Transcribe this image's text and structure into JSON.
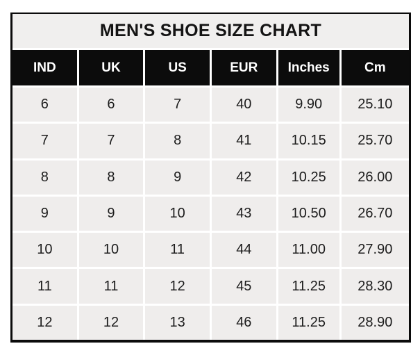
{
  "chart_data": {
    "type": "table",
    "title": "MEN'S SHOE SIZE CHART",
    "columns": [
      "IND",
      "UK",
      "US",
      "EUR",
      "Inches",
      "Cm"
    ],
    "rows": [
      [
        "6",
        "6",
        "7",
        "40",
        "9.90",
        "25.10"
      ],
      [
        "7",
        "7",
        "8",
        "41",
        "10.15",
        "25.70"
      ],
      [
        "8",
        "8",
        "9",
        "42",
        "10.25",
        "26.00"
      ],
      [
        "9",
        "9",
        "10",
        "43",
        "10.50",
        "26.70"
      ],
      [
        "10",
        "10",
        "11",
        "44",
        "11.00",
        "27.90"
      ],
      [
        "11",
        "11",
        "12",
        "45",
        "11.25",
        "28.30"
      ],
      [
        "12",
        "12",
        "13",
        "46",
        "11.25",
        "28.90"
      ]
    ],
    "layout_hints": {
      "header_row": "black background, white bold text",
      "data_rows": "light gray cells separated by white gridlines",
      "legend_position": "none",
      "grid": "on"
    },
    "colors": {
      "title_bg": "#f0efee",
      "title_text": "#141414",
      "header_bg": "#0c0c0c",
      "header_text": "#ffffff",
      "cell_bg": "#efedec",
      "cell_text": "#1c1c1c",
      "border": "#0b0b0b",
      "gridline_gap": "#ffffff",
      "page_bg": "#ffffff"
    }
  }
}
